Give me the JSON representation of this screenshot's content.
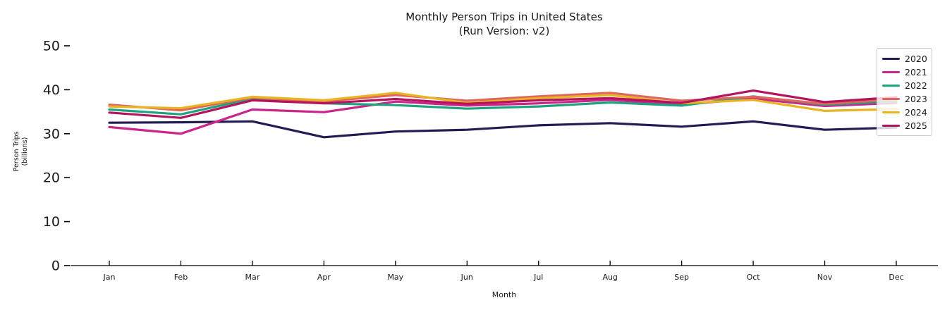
{
  "chart_data": {
    "type": "line",
    "title": "Monthly Person Trips in United States",
    "subtitle": "(Run Version: v2)",
    "title_lines": [
      "Monthly Person Trips in United States",
      "(Run Version: v2)"
    ],
    "xlabel": "Month",
    "ylabel": "Person Trips (billions)",
    "ylabel_lines": [
      "Person Trips",
      "(billions)"
    ],
    "categories": [
      "Jan",
      "Feb",
      "Mar",
      "Apr",
      "May",
      "Jun",
      "Jul",
      "Aug",
      "Sep",
      "Oct",
      "Nov",
      "Dec"
    ],
    "y_ticks": [
      0,
      10,
      20,
      30,
      40,
      50
    ],
    "ylim": [
      0,
      52
    ],
    "grid": false,
    "legend_position": "upper right",
    "axis_color": "#000000",
    "text_color": "#1a1a1a",
    "series": [
      {
        "name": "2020",
        "color": "#211d54",
        "values": [
          32.5,
          32.6,
          32.8,
          29.2,
          30.5,
          30.9,
          31.9,
          32.4,
          31.6,
          32.8,
          30.9,
          31.4
        ]
      },
      {
        "name": "2021",
        "color": "#c9258a",
        "values": [
          31.5,
          30.0,
          35.5,
          34.9,
          37.3,
          36.4,
          36.9,
          37.7,
          36.6,
          38.0,
          36.3,
          37.0
        ]
      },
      {
        "name": "2022",
        "color": "#1ca47e",
        "values": [
          35.5,
          34.4,
          38.0,
          36.9,
          36.5,
          35.7,
          36.2,
          37.1,
          36.4,
          38.5,
          36.6,
          37.4
        ]
      },
      {
        "name": "2023",
        "color": "#e0655c",
        "values": [
          36.6,
          35.3,
          38.2,
          37.3,
          38.8,
          37.5,
          38.5,
          39.3,
          37.5,
          38.4,
          36.8,
          37.8
        ]
      },
      {
        "name": "2024",
        "color": "#e9b423",
        "values": [
          36.2,
          35.8,
          38.4,
          37.6,
          39.3,
          37.0,
          38.1,
          38.8,
          36.9,
          37.7,
          35.2,
          35.6
        ]
      },
      {
        "name": "2025",
        "color": "#b4135e",
        "values": [
          34.8,
          33.6,
          37.6,
          36.9,
          37.9,
          36.8,
          37.6,
          38.1,
          37.0,
          39.8,
          37.2,
          38.3
        ]
      }
    ]
  }
}
